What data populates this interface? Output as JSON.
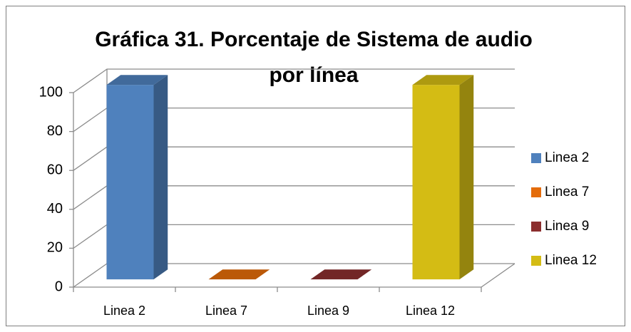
{
  "chart_data": {
    "type": "bar3d",
    "title": [
      "Gráfica 31. Porcentaje de Sistema de audio",
      "por línea"
    ],
    "categories": [
      "Linea 2",
      "Linea 7",
      "Linea 9",
      "Linea 12"
    ],
    "values": [
      100,
      0,
      0,
      100
    ],
    "colors": [
      "#4f81bd",
      "#e46c0a",
      "#8b2e2e",
      "#d4bc14"
    ],
    "ylim": [
      0,
      100
    ],
    "yticks": [
      0,
      20,
      40,
      60,
      80,
      100
    ],
    "grid": true,
    "legend": "right"
  }
}
